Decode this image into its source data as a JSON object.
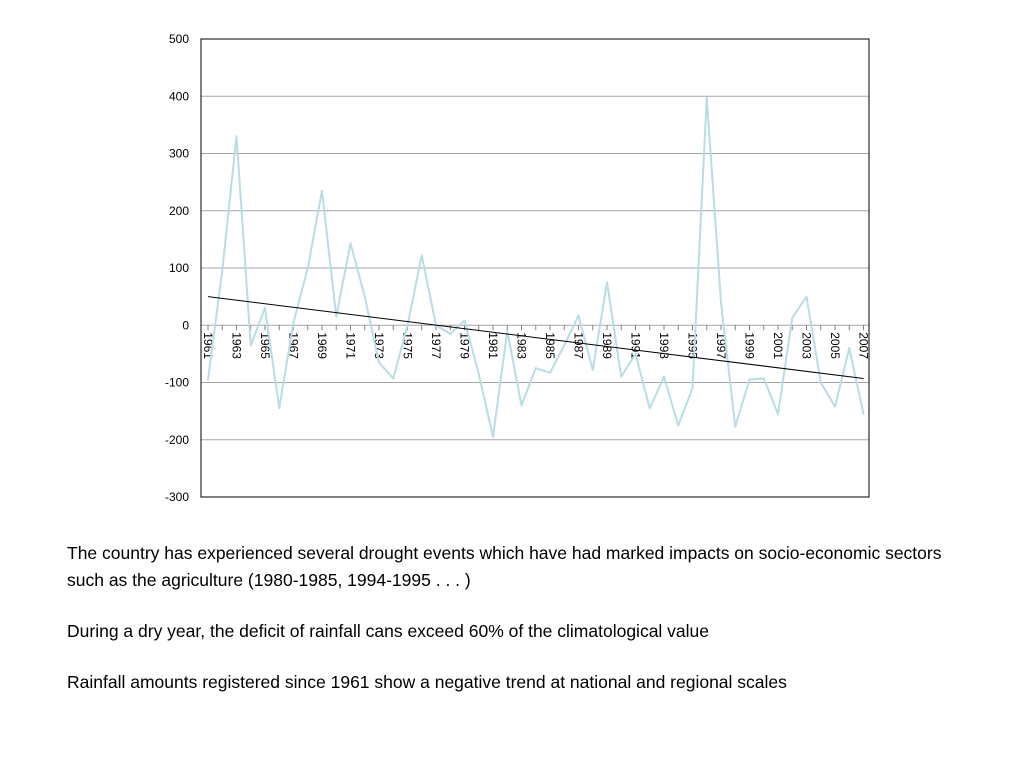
{
  "chart_data": {
    "type": "line",
    "title": "",
    "xlabel": "",
    "ylabel": "",
    "ylim": [
      -300,
      500
    ],
    "yticks": [
      "500",
      "400",
      "300",
      "200",
      "100",
      "0",
      "-100",
      "-200",
      "-300"
    ],
    "x": [
      1961,
      1962,
      1963,
      1964,
      1965,
      1966,
      1967,
      1968,
      1969,
      1970,
      1971,
      1972,
      1973,
      1974,
      1975,
      1976,
      1977,
      1978,
      1979,
      1980,
      1981,
      1982,
      1983,
      1984,
      1985,
      1986,
      1987,
      1988,
      1989,
      1990,
      1991,
      1992,
      1993,
      1994,
      1995,
      1996,
      1997,
      1998,
      1999,
      2000,
      2001,
      2002,
      2003,
      2004,
      2005,
      2006,
      2007
    ],
    "xtick_labels": [
      "1961",
      "1963",
      "1965",
      "1967",
      "1969",
      "1971",
      "1973",
      "1975",
      "1977",
      "1979",
      "1981",
      "1983",
      "1985",
      "1987",
      "1989",
      "1991",
      "1993",
      "1995",
      "1997",
      "1999",
      "2001",
      "2003",
      "2005",
      "2007"
    ],
    "series": [
      {
        "values": [
          -95,
          95,
          330,
          -35,
          30,
          -145,
          5,
          100,
          235,
          15,
          143,
          50,
          -65,
          -93,
          0,
          122,
          0,
          -15,
          8,
          -85,
          -195,
          -10,
          -140,
          -75,
          -83,
          -35,
          17,
          -78,
          75,
          -90,
          -50,
          -145,
          -90,
          -175,
          -110,
          397,
          40,
          -177,
          -95,
          -93,
          -155,
          13,
          50,
          -100,
          -142,
          -40,
          -155
        ],
        "color": "#b7dde5"
      }
    ],
    "trendline": {
      "start": [
        1961,
        50
      ],
      "end": [
        2007,
        -93
      ],
      "color": "#000000"
    },
    "grid": true,
    "legend": "none"
  },
  "text": {
    "paragraph_1": "The country has experienced several drought events which have had marked impacts on socio-economic sectors such as the agriculture (1980-1985, 1994-1995 . . . )",
    "paragraph_2": "During a dry year, the deficit of rainfall cans exceed 60% of the climatological value",
    "paragraph_3": "Rainfall amounts registered since 1961 show a negative trend at national and regional scales"
  }
}
